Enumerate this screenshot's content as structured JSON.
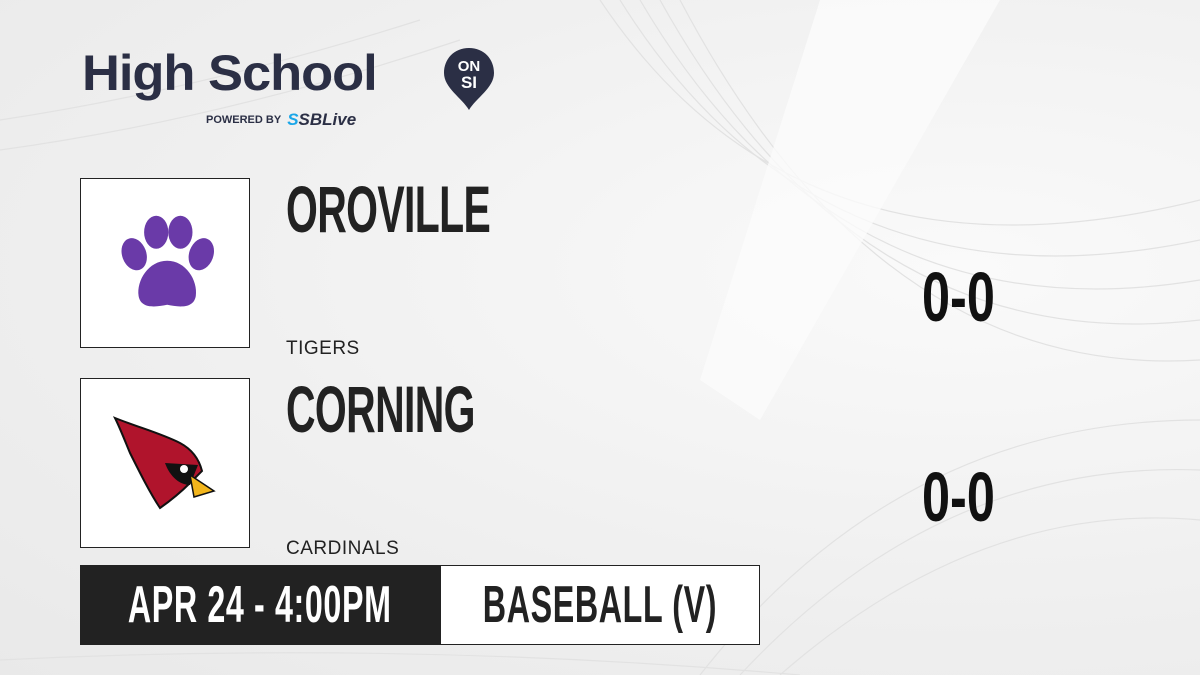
{
  "brand": {
    "title": "High School",
    "badge_top": "ON",
    "badge_bottom": "SI",
    "powered_by": "POWERED BY",
    "partner_prefix": "S",
    "partner": "SBLive",
    "navy": "#2b2f45",
    "accent": "#1aa6e8"
  },
  "teams": [
    {
      "name": "OROVILLE",
      "mascot": "TIGERS",
      "score": "0-0",
      "logo_icon": "paw-print-icon",
      "logo_color": "#6a3aa8"
    },
    {
      "name": "CORNING",
      "mascot": "CARDINALS",
      "score": "0-0",
      "logo_icon": "cardinal-bird-icon",
      "logo_color": "#b0142c"
    }
  ],
  "game": {
    "datetime": "APR 24 - 4:00PM",
    "sport": "BASEBALL (V)"
  }
}
